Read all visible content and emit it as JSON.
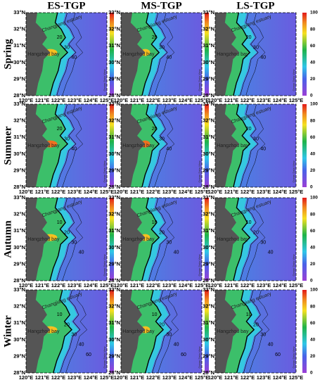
{
  "columns": [
    "ES-TGP",
    "MS-TGP",
    "LS-TGP"
  ],
  "rows": [
    "Spring",
    "Summer",
    "Autumn",
    "Winter"
  ],
  "lat_labels": [
    "33°N",
    "32°N",
    "31°N",
    "30°N",
    "29°N",
    "28°N"
  ],
  "lon_labels": [
    "120°E",
    "121°E",
    "122°E",
    "123°E",
    "124°E",
    "125°E"
  ],
  "colorbar": {
    "ticks": [
      "0",
      "20",
      "40",
      "60",
      "80",
      "100"
    ],
    "watermark": "Ocean Data View"
  },
  "places": [
    "Changjiang estuary",
    "Hangzhou bay"
  ],
  "contour_labels": [
    [
      "20",
      "30",
      "40"
    ],
    [
      "20",
      "30",
      "40"
    ],
    [
      "10",
      "20",
      "30",
      "40"
    ],
    [
      "10",
      "20",
      "30",
      "40",
      "60"
    ]
  ]
}
